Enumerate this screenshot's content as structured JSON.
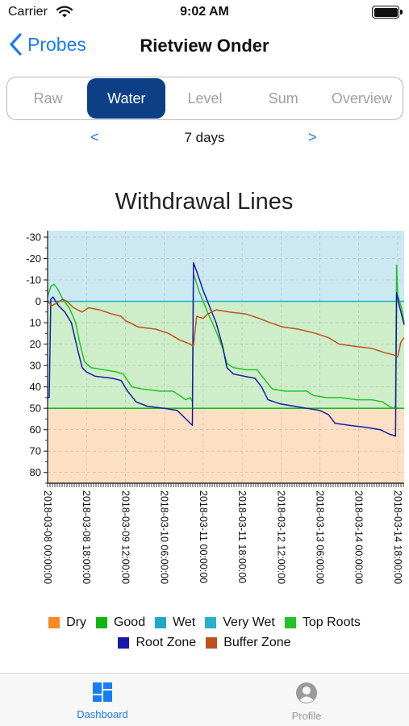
{
  "status_bar": {
    "carrier": "Carrier",
    "time": "9:02 AM"
  },
  "nav": {
    "back_label": "Probes",
    "title": "Rietview Onder"
  },
  "segments": [
    {
      "label": "Raw",
      "active": false
    },
    {
      "label": "Water",
      "active": true
    },
    {
      "label": "Level",
      "active": false
    },
    {
      "label": "Sum",
      "active": false
    },
    {
      "label": "Overview",
      "active": false
    }
  ],
  "date_nav": {
    "prev": "<",
    "label": "7 days",
    "next": ">"
  },
  "tab_bar": {
    "tabs": [
      {
        "label": "Dashboard",
        "icon": "dashboard-icon",
        "active": true
      },
      {
        "label": "Profile",
        "icon": "profile-icon",
        "active": false
      }
    ]
  },
  "chart_data": {
    "type": "line",
    "title": "Withdrawal Lines",
    "xlabel": "",
    "ylabel": "",
    "y_reversed": true,
    "ylim": [
      -33,
      85
    ],
    "yticks": [
      -30,
      -20,
      -10,
      0,
      10,
      20,
      30,
      40,
      50,
      60,
      70,
      80
    ],
    "xlim": [
      "2018-03-08 00:00",
      "2018-03-14 21:00"
    ],
    "xtick_labels": [
      "2018-03-08 00:00:00",
      "2018-03-08 18:00:00",
      "2018-03-09 12:00:00",
      "2018-03-10 06:00:00",
      "2018-03-11 00:00:00",
      "2018-03-11 18:00:00",
      "2018-03-12 12:00:00",
      "2018-03-13 06:00:00",
      "2018-03-14 00:00:00",
      "2018-03-14 18:00:00"
    ],
    "grid": true,
    "legend_position": "bottom",
    "bands": [
      {
        "name": "Dry",
        "from": 50,
        "to": 85,
        "color": "#fde0c4"
      },
      {
        "name": "Good",
        "from": 0,
        "to": 50,
        "color": "#cdeec9"
      },
      {
        "name": "Wet",
        "from": -33,
        "to": 0,
        "color": "#cce9f2"
      }
    ],
    "reference_lines": [
      {
        "value": 0,
        "color": "#20b3cd"
      },
      {
        "value": 50,
        "color": "#1fb81f"
      }
    ],
    "series": [
      {
        "name": "Dry",
        "color": "#f68b20",
        "points": []
      },
      {
        "name": "Good",
        "color": "#11b511",
        "points": []
      },
      {
        "name": "Wet",
        "color": "#1fa9c9",
        "points": []
      },
      {
        "name": "Very Wet",
        "color": "#26b2cf",
        "points": []
      },
      {
        "name": "Top Roots",
        "color": "#22c322",
        "points": [
          [
            "2018-03-08 00:00",
            -2
          ],
          [
            "2018-03-08 01:30",
            -7
          ],
          [
            "2018-03-08 03:00",
            -8
          ],
          [
            "2018-03-08 04:30",
            -6
          ],
          [
            "2018-03-08 07:00",
            -1
          ],
          [
            "2018-03-08 10:00",
            3
          ],
          [
            "2018-03-08 13:00",
            10
          ],
          [
            "2018-03-08 15:00",
            20
          ],
          [
            "2018-03-08 17:00",
            28
          ],
          [
            "2018-03-08 20:00",
            31
          ],
          [
            "2018-03-09 02:00",
            32
          ],
          [
            "2018-03-09 08:00",
            33
          ],
          [
            "2018-03-09 11:00",
            34
          ],
          [
            "2018-03-09 15:00",
            40
          ],
          [
            "2018-03-09 20:00",
            41
          ],
          [
            "2018-03-10 04:00",
            42
          ],
          [
            "2018-03-10 10:00",
            42
          ],
          [
            "2018-03-10 13:00",
            44
          ],
          [
            "2018-03-10 16:00",
            46
          ],
          [
            "2018-03-10 18:00",
            45
          ],
          [
            "2018-03-10 19:00",
            47
          ],
          [
            "2018-03-10 19:30",
            -13
          ],
          [
            "2018-03-10 22:00",
            -5
          ],
          [
            "2018-03-11 02:00",
            5
          ],
          [
            "2018-03-11 06:00",
            14
          ],
          [
            "2018-03-11 09:00",
            22
          ],
          [
            "2018-03-11 11:00",
            29
          ],
          [
            "2018-03-11 14:00",
            31
          ],
          [
            "2018-03-11 20:00",
            32
          ],
          [
            "2018-03-12 01:00",
            32
          ],
          [
            "2018-03-12 04:00",
            36
          ],
          [
            "2018-03-12 08:00",
            41
          ],
          [
            "2018-03-12 14:00",
            42
          ],
          [
            "2018-03-12 19:00",
            42
          ],
          [
            "2018-03-13 00:00",
            42
          ],
          [
            "2018-03-13 03:00",
            44
          ],
          [
            "2018-03-13 09:00",
            45
          ],
          [
            "2018-03-13 16:00",
            45
          ],
          [
            "2018-03-13 23:00",
            46
          ],
          [
            "2018-03-14 06:00",
            46
          ],
          [
            "2018-03-14 11:00",
            47
          ],
          [
            "2018-03-14 14:00",
            49
          ],
          [
            "2018-03-14 16:00",
            50
          ],
          [
            "2018-03-14 17:00",
            49
          ],
          [
            "2018-03-14 17:30",
            -17
          ],
          [
            "2018-03-14 18:00",
            -3
          ],
          [
            "2018-03-14 20:00",
            4
          ],
          [
            "2018-03-14 21:00",
            10
          ]
        ]
      },
      {
        "name": "Root Zone",
        "color": "#1a1aa8",
        "points": [
          [
            "2018-03-08 00:00",
            45
          ],
          [
            "2018-03-08 00:45",
            45
          ],
          [
            "2018-03-08 01:30",
            -1
          ],
          [
            "2018-03-08 02:30",
            -2
          ],
          [
            "2018-03-08 05:00",
            2
          ],
          [
            "2018-03-08 08:00",
            5
          ],
          [
            "2018-03-08 11:00",
            10
          ],
          [
            "2018-03-08 14:00",
            23
          ],
          [
            "2018-03-08 16:00",
            31
          ],
          [
            "2018-03-08 18:00",
            33
          ],
          [
            "2018-03-08 22:00",
            35
          ],
          [
            "2018-03-09 06:00",
            36
          ],
          [
            "2018-03-09 10:00",
            37
          ],
          [
            "2018-03-09 13:00",
            42
          ],
          [
            "2018-03-09 17:00",
            47
          ],
          [
            "2018-03-09 22:00",
            49
          ],
          [
            "2018-03-10 06:00",
            50
          ],
          [
            "2018-03-10 12:00",
            51
          ],
          [
            "2018-03-10 16:00",
            55
          ],
          [
            "2018-03-10 19:00",
            58
          ],
          [
            "2018-03-10 19:30",
            -18
          ],
          [
            "2018-03-10 21:00",
            -14
          ],
          [
            "2018-03-11 00:00",
            -5
          ],
          [
            "2018-03-11 06:00",
            10
          ],
          [
            "2018-03-11 09:00",
            21
          ],
          [
            "2018-03-11 11:00",
            31
          ],
          [
            "2018-03-11 14:00",
            34
          ],
          [
            "2018-03-11 19:00",
            35
          ],
          [
            "2018-03-12 00:00",
            36
          ],
          [
            "2018-03-12 03:00",
            40
          ],
          [
            "2018-03-12 06:00",
            46
          ],
          [
            "2018-03-12 12:00",
            48
          ],
          [
            "2018-03-12 18:00",
            49
          ],
          [
            "2018-03-13 00:00",
            50
          ],
          [
            "2018-03-13 06:00",
            51
          ],
          [
            "2018-03-13 10:00",
            53
          ],
          [
            "2018-03-13 13:00",
            57
          ],
          [
            "2018-03-13 20:00",
            58
          ],
          [
            "2018-03-14 04:00",
            59
          ],
          [
            "2018-03-14 10:00",
            60
          ],
          [
            "2018-03-14 14:00",
            62
          ],
          [
            "2018-03-14 17:00",
            63
          ],
          [
            "2018-03-14 17:30",
            -4
          ],
          [
            "2018-03-14 18:30",
            1
          ],
          [
            "2018-03-14 21:00",
            11
          ]
        ]
      },
      {
        "name": "Buffer Zone",
        "color": "#c0511a",
        "points": [
          [
            "2018-03-08 00:00",
            0
          ],
          [
            "2018-03-08 02:00",
            2
          ],
          [
            "2018-03-08 04:00",
            1
          ],
          [
            "2018-03-08 07:00",
            -1
          ],
          [
            "2018-03-08 09:00",
            0
          ],
          [
            "2018-03-08 12:00",
            3
          ],
          [
            "2018-03-08 16:00",
            5
          ],
          [
            "2018-03-08 19:00",
            3
          ],
          [
            "2018-03-09 00:00",
            4
          ],
          [
            "2018-03-09 06:00",
            6
          ],
          [
            "2018-03-09 10:00",
            7
          ],
          [
            "2018-03-09 12:00",
            9
          ],
          [
            "2018-03-09 18:00",
            12
          ],
          [
            "2018-03-10 02:00",
            13
          ],
          [
            "2018-03-10 08:00",
            15
          ],
          [
            "2018-03-10 13:00",
            18
          ],
          [
            "2018-03-10 18:00",
            20
          ],
          [
            "2018-03-10 19:30",
            21
          ],
          [
            "2018-03-10 21:00",
            7
          ],
          [
            "2018-03-11 00:00",
            8
          ],
          [
            "2018-03-11 02:00",
            6
          ],
          [
            "2018-03-11 06:00",
            4
          ],
          [
            "2018-03-11 12:00",
            5
          ],
          [
            "2018-03-11 20:00",
            6
          ],
          [
            "2018-03-12 02:00",
            8
          ],
          [
            "2018-03-12 07:00",
            10
          ],
          [
            "2018-03-12 13:00",
            12
          ],
          [
            "2018-03-12 20:00",
            13
          ],
          [
            "2018-03-13 04:00",
            15
          ],
          [
            "2018-03-13 10:00",
            17
          ],
          [
            "2018-03-13 15:00",
            20
          ],
          [
            "2018-03-13 22:00",
            21
          ],
          [
            "2018-03-14 06:00",
            22
          ],
          [
            "2018-03-14 12:00",
            24
          ],
          [
            "2018-03-14 16:00",
            25
          ],
          [
            "2018-03-14 18:00",
            26
          ],
          [
            "2018-03-14 19:30",
            19
          ],
          [
            "2018-03-14 21:00",
            17
          ]
        ]
      }
    ]
  }
}
